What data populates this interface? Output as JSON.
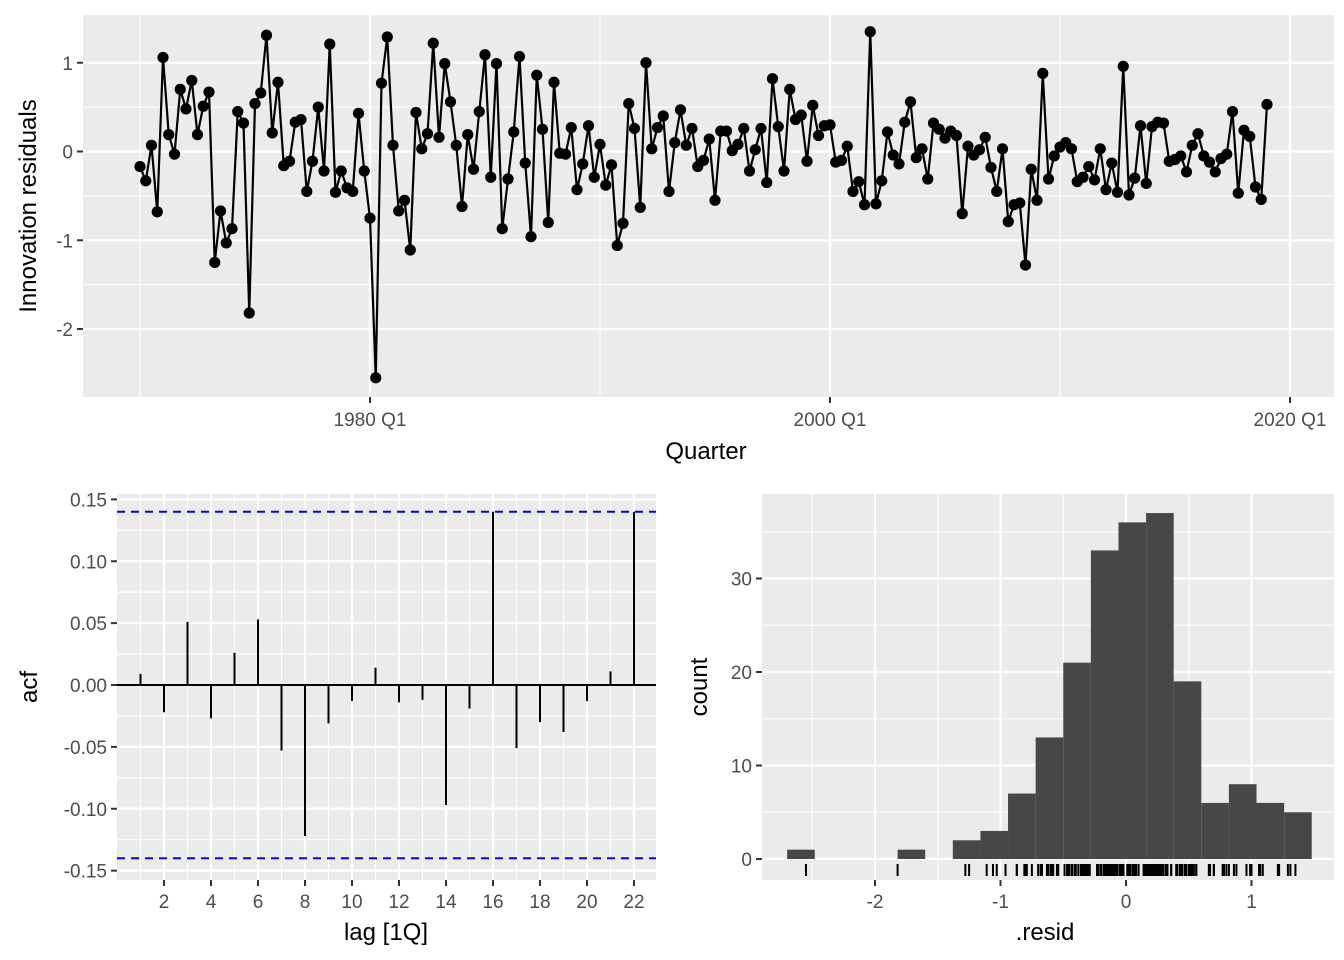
{
  "chart_data": [
    {
      "type": "line",
      "xlabel": "Quarter",
      "ylabel": "Innovation residuals",
      "x_tick_labels": [
        "1980 Q1",
        "2000 Q1",
        "2020 Q1"
      ],
      "y_tick_labels": [
        "-2",
        "-1",
        "0",
        "1"
      ],
      "x_start": "1970 Q1",
      "series": [
        {
          "values": [
            -0.17,
            -0.33,
            0.07,
            -0.68,
            1.06,
            0.19,
            -0.03,
            0.7,
            0.48,
            0.8,
            0.19,
            0.51,
            0.67,
            -1.25,
            -0.67,
            -1.03,
            -0.87,
            0.45,
            0.32,
            -1.82,
            0.54,
            0.66,
            1.31,
            0.21,
            0.78,
            -0.16,
            -0.11,
            0.33,
            0.36,
            -0.45,
            -0.11,
            0.5,
            -0.22,
            1.21,
            -0.46,
            -0.22,
            -0.41,
            -0.45,
            0.43,
            -0.22,
            -0.75,
            -2.55,
            0.77,
            1.29,
            0.07,
            -0.67,
            -0.55,
            -1.11,
            0.44,
            0.03,
            0.2,
            1.22,
            0.16,
            0.99,
            0.56,
            0.07,
            -0.62,
            0.19,
            -0.2,
            0.45,
            1.09,
            -0.29,
            0.99,
            -0.87,
            -0.31,
            0.22,
            1.07,
            -0.13,
            -0.96,
            0.86,
            0.25,
            -0.8,
            0.78,
            -0.02,
            -0.03,
            0.27,
            -0.43,
            -0.14,
            0.29,
            -0.29,
            0.08,
            -0.38,
            -0.15,
            -1.06,
            -0.81,
            0.54,
            0.26,
            -0.63,
            1.0,
            0.03,
            0.27,
            0.4,
            -0.45,
            0.1,
            0.47,
            0.07,
            0.26,
            -0.17,
            -0.1,
            0.14,
            -0.55,
            0.23,
            0.23,
            0.01,
            0.08,
            0.26,
            -0.22,
            0.02,
            0.26,
            -0.35,
            0.82,
            0.28,
            -0.22,
            0.7,
            0.36,
            0.41,
            -0.11,
            0.52,
            0.18,
            0.29,
            0.3,
            -0.12,
            -0.1,
            0.06,
            -0.45,
            -0.34,
            -0.6,
            1.35,
            -0.59,
            -0.33,
            0.22,
            -0.04,
            -0.14,
            0.33,
            0.56,
            -0.07,
            0.03,
            -0.31,
            0.32,
            0.25,
            0.15,
            0.23,
            0.18,
            -0.7,
            0.06,
            -0.04,
            0.02,
            0.16,
            -0.18,
            -0.45,
            0.03,
            -0.79,
            -0.6,
            -0.58,
            -1.28,
            -0.2,
            -0.55,
            0.88,
            -0.31,
            -0.05,
            0.05,
            0.1,
            0.03,
            -0.34,
            -0.29,
            -0.17,
            -0.32,
            0.03,
            -0.43,
            -0.13,
            -0.46,
            0.96,
            -0.49,
            -0.3,
            0.29,
            -0.36,
            0.28,
            0.33,
            0.32,
            -0.11,
            -0.09,
            -0.05,
            -0.23,
            0.07,
            0.2,
            -0.05,
            -0.12,
            -0.23,
            -0.08,
            -0.03,
            0.45,
            -0.47,
            0.24,
            0.17,
            -0.4,
            -0.54,
            0.53
          ]
        }
      ],
      "line_color": "#000000",
      "grid": true
    },
    {
      "type": "bar",
      "xlabel": "lag [1Q]",
      "ylabel": "acf",
      "x": [
        1,
        2,
        3,
        4,
        5,
        6,
        7,
        8,
        9,
        10,
        11,
        12,
        13,
        14,
        15,
        16,
        17,
        18,
        19,
        20,
        21,
        22
      ],
      "x_tick_labels": [
        "2",
        "4",
        "6",
        "8",
        "10",
        "12",
        "14",
        "16",
        "18",
        "20",
        "22"
      ],
      "y_tick_labels": [
        "-0.15",
        "-0.10",
        "-0.05",
        "0.00",
        "0.05",
        "0.10",
        "0.15"
      ],
      "series": [
        {
          "values": [
            0.009,
            -0.022,
            0.051,
            -0.027,
            0.026,
            0.053,
            -0.053,
            -0.122,
            -0.031,
            -0.013,
            0.014,
            -0.014,
            -0.012,
            -0.097,
            -0.019,
            0.14,
            -0.051,
            -0.03,
            -0.038,
            -0.013,
            0.011,
            0.14
          ]
        }
      ],
      "ylim": [
        -0.15,
        0.15
      ],
      "confidence_bound": 0.14,
      "bound_color": "#0000FF",
      "grid": true
    },
    {
      "type": "bar",
      "xlabel": ".resid",
      "ylabel": "count",
      "x_tick_labels": [
        "-2",
        "-1",
        "0",
        "1"
      ],
      "y_tick_labels": [
        "0",
        "10",
        "20",
        "30"
      ],
      "bins": [
        {
          "x0": -2.7,
          "x1": -2.48,
          "count": 1
        },
        {
          "x0": -2.48,
          "x1": -2.26,
          "count": 0
        },
        {
          "x0": -2.26,
          "x1": -2.04,
          "count": 0
        },
        {
          "x0": -2.04,
          "x1": -1.82,
          "count": 0
        },
        {
          "x0": -1.82,
          "x1": -1.6,
          "count": 1
        },
        {
          "x0": -1.6,
          "x1": -1.38,
          "count": 0
        },
        {
          "x0": -1.38,
          "x1": -1.16,
          "count": 2
        },
        {
          "x0": -1.16,
          "x1": -0.94,
          "count": 3
        },
        {
          "x0": -0.94,
          "x1": -0.72,
          "count": 7
        },
        {
          "x0": -0.72,
          "x1": -0.5,
          "count": 13
        },
        {
          "x0": -0.5,
          "x1": -0.28,
          "count": 21
        },
        {
          "x0": -0.28,
          "x1": -0.06,
          "count": 33
        },
        {
          "x0": -0.06,
          "x1": 0.16,
          "count": 36
        },
        {
          "x0": 0.16,
          "x1": 0.38,
          "count": 37
        },
        {
          "x0": 0.38,
          "x1": 0.6,
          "count": 19
        },
        {
          "x0": 0.6,
          "x1": 0.82,
          "count": 6
        },
        {
          "x0": 0.82,
          "x1": 1.04,
          "count": 8
        },
        {
          "x0": 1.04,
          "x1": 1.26,
          "count": 6
        },
        {
          "x0": 1.26,
          "x1": 1.48,
          "count": 5
        }
      ],
      "bar_color": "#474747",
      "rug": true,
      "grid": true
    }
  ]
}
